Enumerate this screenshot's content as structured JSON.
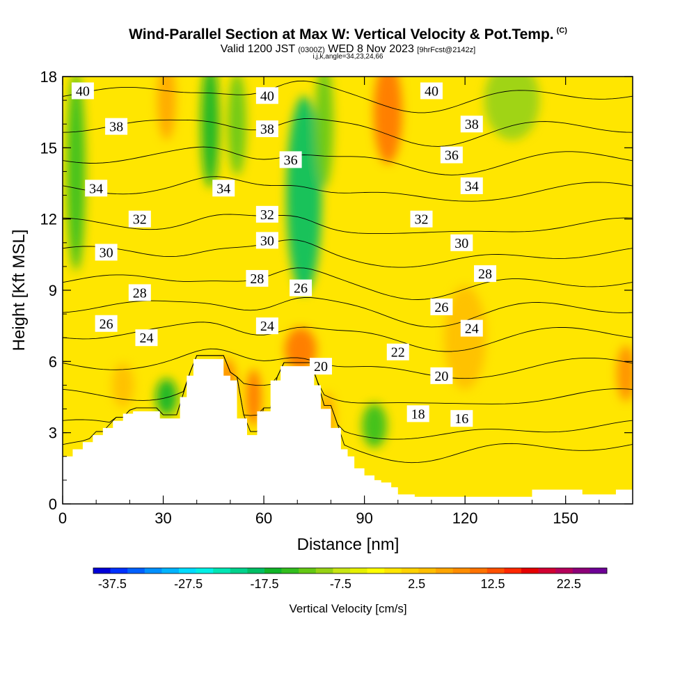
{
  "header": {
    "title": "Wind-Parallel Section at Max W: Vertical Velocity & Pot.Temp.",
    "copyright": "(C)",
    "valid_prefix": "Valid 1200 JST",
    "valid_utc": "(0300Z)",
    "valid_date": "WED 8 Nov 2023",
    "forecast": "[9hrFcst@2142z]",
    "params": "i,j,k,angle=34,23,24,66"
  },
  "chart_data": {
    "type": "heatmap",
    "xlabel": "Distance [nm]",
    "ylabel": "Height [Kft MSL]",
    "xlim": [
      0,
      170
    ],
    "ylim": [
      0,
      18
    ],
    "x_ticks": [
      0,
      30,
      60,
      90,
      120,
      150
    ],
    "y_ticks": [
      0,
      3,
      6,
      9,
      12,
      15,
      18
    ],
    "colorbar": {
      "title": "Vertical Velocity [cm/s]",
      "tick_labels": [
        "-37.5",
        "-27.5",
        "-17.5",
        "-7.5",
        "2.5",
        "12.5",
        "22.5"
      ],
      "tick_values": [
        -37.5,
        -27.5,
        -17.5,
        -7.5,
        2.5,
        12.5,
        22.5
      ],
      "range": [
        -40,
        27.5
      ],
      "step": 2.5,
      "colors": [
        "#0000d8",
        "#0030ff",
        "#0060ff",
        "#0090ff",
        "#00b4ff",
        "#00dcff",
        "#00f0e6",
        "#00e6b4",
        "#00d28c",
        "#00be64",
        "#10b428",
        "#32be1e",
        "#64c814",
        "#96d214",
        "#c8e614",
        "#e6f000",
        "#ffff00",
        "#ffe600",
        "#ffd200",
        "#ffbe00",
        "#ffa500",
        "#ff8c00",
        "#ff7300",
        "#ff5000",
        "#ff2800",
        "#e60000",
        "#d20032",
        "#b4005a",
        "#8c0078",
        "#6e0096"
      ]
    },
    "terrain": [
      [
        0,
        2.0
      ],
      [
        3,
        2.0
      ],
      [
        3,
        2.3
      ],
      [
        6,
        2.3
      ],
      [
        6,
        2.6
      ],
      [
        9,
        2.6
      ],
      [
        9,
        2.9
      ],
      [
        12,
        2.9
      ],
      [
        12,
        3.2
      ],
      [
        15,
        3.2
      ],
      [
        15,
        3.5
      ],
      [
        18,
        3.5
      ],
      [
        18,
        3.8
      ],
      [
        21,
        3.8
      ],
      [
        21,
        3.9
      ],
      [
        29,
        3.9
      ],
      [
        29,
        3.6
      ],
      [
        35,
        3.6
      ],
      [
        35,
        4.5
      ],
      [
        37,
        4.5
      ],
      [
        37,
        5.4
      ],
      [
        39,
        5.4
      ],
      [
        39,
        6.1
      ],
      [
        48,
        6.1
      ],
      [
        48,
        5.4
      ],
      [
        50,
        5.4
      ],
      [
        50,
        5.2
      ],
      [
        52,
        5.2
      ],
      [
        52,
        3.6
      ],
      [
        55,
        3.6
      ],
      [
        55,
        2.9
      ],
      [
        58,
        2.9
      ],
      [
        58,
        3.9
      ],
      [
        62,
        3.9
      ],
      [
        62,
        5.2
      ],
      [
        65,
        5.2
      ],
      [
        65,
        5.8
      ],
      [
        75,
        5.8
      ],
      [
        75,
        5.0
      ],
      [
        77,
        5.0
      ],
      [
        77,
        4.0
      ],
      [
        80,
        4.0
      ],
      [
        80,
        3.2
      ],
      [
        83,
        3.2
      ],
      [
        83,
        2.3
      ],
      [
        85,
        2.3
      ],
      [
        85,
        2.0
      ],
      [
        87,
        2.0
      ],
      [
        87,
        1.5
      ],
      [
        90,
        1.5
      ],
      [
        90,
        1.2
      ],
      [
        93,
        1.2
      ],
      [
        93,
        1.0
      ],
      [
        95,
        1.0
      ],
      [
        95,
        0.9
      ],
      [
        98,
        0.9
      ],
      [
        98,
        0.7
      ],
      [
        100,
        0.7
      ],
      [
        100,
        0.4
      ],
      [
        105,
        0.4
      ],
      [
        105,
        0.3
      ],
      [
        140,
        0.3
      ],
      [
        140,
        0.6
      ],
      [
        155,
        0.6
      ],
      [
        155,
        0.4
      ],
      [
        165,
        0.4
      ],
      [
        165,
        0.6
      ],
      [
        170,
        0.6
      ],
      [
        170,
        0
      ]
    ],
    "vv_features": [
      {
        "x": 4,
        "y": 14,
        "w": 3,
        "h": 8,
        "value": -12
      },
      {
        "x": 31,
        "y": 4.5,
        "w": 4,
        "h": 1.2,
        "value": -15
      },
      {
        "x": 44,
        "y": 16,
        "w": 3,
        "h": 5,
        "value": -15
      },
      {
        "x": 52,
        "y": 16,
        "w": 3,
        "h": 4,
        "value": -10
      },
      {
        "x": 72,
        "y": 13,
        "w": 8,
        "h": 8,
        "value": -17
      },
      {
        "x": 78,
        "y": 16,
        "w": 3,
        "h": 5,
        "value": -8
      },
      {
        "x": 93,
        "y": 3.3,
        "w": 5,
        "h": 1.5,
        "value": -12
      },
      {
        "x": 134,
        "y": 17,
        "w": 14,
        "h": 3,
        "value": -7
      },
      {
        "x": 97,
        "y": 16.5,
        "w": 6,
        "h": 4,
        "value": 17
      },
      {
        "x": 31,
        "y": 17,
        "w": 3,
        "h": 3,
        "value": 12
      },
      {
        "x": 71,
        "y": 6.5,
        "w": 7,
        "h": 1.5,
        "value": 17
      },
      {
        "x": 49,
        "y": 5.2,
        "w": 3,
        "h": 1.5,
        "value": 14
      },
      {
        "x": 57,
        "y": 4.5,
        "w": 2,
        "h": 2,
        "value": 16
      },
      {
        "x": 79,
        "y": 3.5,
        "w": 2,
        "h": 2,
        "value": 12
      },
      {
        "x": 18,
        "y": 5,
        "w": 4,
        "h": 1.5,
        "value": 8
      },
      {
        "x": 120,
        "y": 7,
        "w": 10,
        "h": 4,
        "value": 8
      },
      {
        "x": 168,
        "y": 5.5,
        "w": 3,
        "h": 2,
        "value": 13
      }
    ],
    "isentropes": [
      {
        "label": "16",
        "base": 2.5
      },
      {
        "label": "18",
        "base": 3.3
      },
      {
        "label": "20",
        "base": 4.6
      },
      {
        "label": "22",
        "base": 5.9
      },
      {
        "label": "24",
        "base": 7.2
      },
      {
        "label": "26",
        "base": 8.3
      },
      {
        "label": "28",
        "base": 9.4
      },
      {
        "label": "30",
        "base": 10.6
      },
      {
        "label": "32",
        "base": 11.8
      },
      {
        "label": "34",
        "base": 13.3
      },
      {
        "label": "36",
        "base": 14.6
      },
      {
        "label": "38",
        "base": 15.9
      },
      {
        "label": "40",
        "base": 17.3
      }
    ],
    "contour_labels": [
      {
        "text": "40",
        "x": 6,
        "y": 17.4
      },
      {
        "text": "40",
        "x": 61,
        "y": 17.2
      },
      {
        "text": "40",
        "x": 110,
        "y": 17.4
      },
      {
        "text": "38",
        "x": 16,
        "y": 15.9
      },
      {
        "text": "38",
        "x": 61,
        "y": 15.8
      },
      {
        "text": "38",
        "x": 122,
        "y": 16.0
      },
      {
        "text": "36",
        "x": 68,
        "y": 14.5
      },
      {
        "text": "36",
        "x": 116,
        "y": 14.7
      },
      {
        "text": "34",
        "x": 10,
        "y": 13.3
      },
      {
        "text": "34",
        "x": 48,
        "y": 13.3
      },
      {
        "text": "34",
        "x": 122,
        "y": 13.4
      },
      {
        "text": "32",
        "x": 23,
        "y": 12.0
      },
      {
        "text": "32",
        "x": 61,
        "y": 12.2
      },
      {
        "text": "32",
        "x": 107,
        "y": 12.0
      },
      {
        "text": "30",
        "x": 13,
        "y": 10.6
      },
      {
        "text": "30",
        "x": 61,
        "y": 11.1
      },
      {
        "text": "30",
        "x": 119,
        "y": 11.0
      },
      {
        "text": "28",
        "x": 23,
        "y": 8.9
      },
      {
        "text": "28",
        "x": 58,
        "y": 9.5
      },
      {
        "text": "28",
        "x": 126,
        "y": 9.7
      },
      {
        "text": "26",
        "x": 13,
        "y": 7.6
      },
      {
        "text": "26",
        "x": 71,
        "y": 9.1
      },
      {
        "text": "26",
        "x": 113,
        "y": 8.3
      },
      {
        "text": "24",
        "x": 25,
        "y": 7.0
      },
      {
        "text": "24",
        "x": 61,
        "y": 7.5
      },
      {
        "text": "24",
        "x": 122,
        "y": 7.4
      },
      {
        "text": "22",
        "x": 100,
        "y": 6.4
      },
      {
        "text": "20",
        "x": 77,
        "y": 5.8
      },
      {
        "text": "20",
        "x": 113,
        "y": 5.4
      },
      {
        "text": "18",
        "x": 106,
        "y": 3.8
      },
      {
        "text": "16",
        "x": 119,
        "y": 3.6
      }
    ]
  }
}
